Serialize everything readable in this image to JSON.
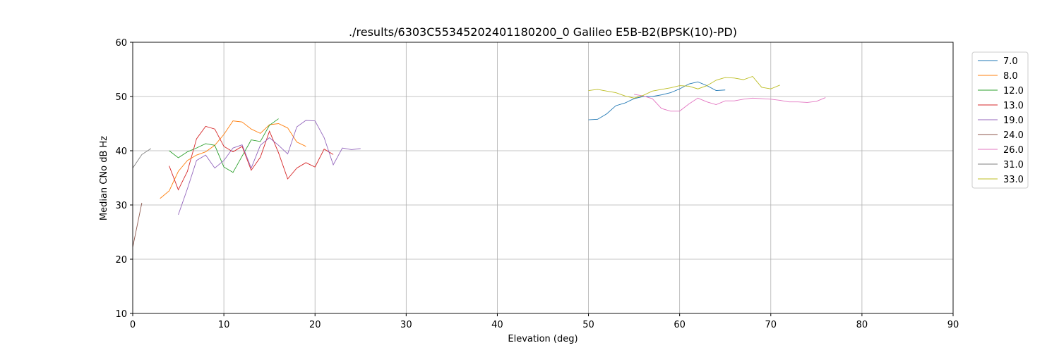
{
  "chart_data": {
    "type": "line",
    "title": "./results/6303C55345202401180200_0 Galileo E5B-B2(BPSK(10)-PD)",
    "xlabel": "Elevation (deg)",
    "ylabel": "Median CNo dB Hz",
    "xlim": [
      0,
      90
    ],
    "ylim": [
      10,
      60
    ],
    "xticks": [
      0,
      10,
      20,
      30,
      40,
      50,
      60,
      70,
      80,
      90
    ],
    "yticks": [
      10,
      20,
      30,
      40,
      50,
      60
    ],
    "grid": true,
    "legend": "right",
    "series": [
      {
        "name": "7.0",
        "color": "#1f77b4",
        "x": [
          50,
          51,
          52,
          53,
          54,
          55,
          56,
          57,
          58,
          59,
          60,
          61,
          62,
          63,
          64,
          65
        ],
        "values": [
          45.7,
          45.8,
          46.8,
          48.3,
          48.8,
          49.6,
          50.0,
          50.0,
          50.3,
          50.7,
          51.4,
          52.3,
          52.7,
          52.0,
          51.1,
          51.2
        ]
      },
      {
        "name": "8.0",
        "color": "#ff7f0e",
        "x": [
          3,
          4,
          5,
          6,
          7,
          8,
          9,
          10,
          11,
          12,
          13,
          14,
          15,
          16,
          17,
          18,
          19
        ],
        "values": [
          31.2,
          32.6,
          36.2,
          38.2,
          39.2,
          39.8,
          41.0,
          43.0,
          45.5,
          45.3,
          44.0,
          43.2,
          44.8,
          45.0,
          44.2,
          41.6,
          40.8
        ]
      },
      {
        "name": "12.0",
        "color": "#2ca02c",
        "x": [
          4,
          5,
          6,
          7,
          8,
          9,
          10,
          11,
          12,
          13,
          14,
          15,
          16
        ],
        "values": [
          40.0,
          38.7,
          39.8,
          40.5,
          41.3,
          41.0,
          37.0,
          36.0,
          39.0,
          42.0,
          41.7,
          44.7,
          45.9
        ]
      },
      {
        "name": "13.0",
        "color": "#d62728",
        "x": [
          4,
          5,
          6,
          7,
          8,
          9,
          10,
          11,
          12,
          13,
          14,
          15,
          16,
          17,
          18,
          19,
          20,
          21,
          22
        ],
        "values": [
          37.2,
          32.8,
          36.2,
          42.2,
          44.5,
          44.0,
          40.8,
          39.8,
          40.8,
          36.4,
          38.8,
          43.6,
          39.6,
          34.8,
          36.8,
          37.8,
          37.0,
          40.3,
          39.3
        ]
      },
      {
        "name": "19.0",
        "color": "#9467bd",
        "x": [
          5,
          6,
          7,
          8,
          9,
          10,
          11,
          12,
          13,
          14,
          15,
          16,
          17,
          18,
          19,
          20,
          21,
          22,
          23,
          24,
          25
        ],
        "values": [
          28.2,
          33.0,
          38.2,
          39.2,
          36.8,
          38.2,
          40.5,
          41.1,
          36.8,
          41.0,
          42.4,
          41.0,
          39.4,
          44.4,
          45.6,
          45.5,
          42.4,
          37.4,
          40.5,
          40.2,
          40.4
        ]
      },
      {
        "name": "24.0",
        "color": "#8c564b",
        "x": [
          0,
          1
        ],
        "values": [
          22.2,
          30.4
        ]
      },
      {
        "name": "26.0",
        "color": "#e377c2",
        "x": [
          55,
          56,
          57,
          58,
          59,
          60,
          61,
          62,
          63,
          64,
          65,
          66,
          67,
          68,
          69,
          70,
          71,
          72,
          73,
          74,
          75,
          76
        ],
        "values": [
          50.4,
          50.1,
          49.6,
          47.8,
          47.3,
          47.3,
          48.6,
          49.7,
          49.0,
          48.5,
          49.2,
          49.2,
          49.5,
          49.7,
          49.6,
          49.5,
          49.3,
          49.0,
          49.0,
          48.9,
          49.1,
          49.8
        ]
      },
      {
        "name": "31.0",
        "color": "#7f7f7f",
        "x": [
          0,
          1,
          2
        ],
        "values": [
          36.8,
          39.3,
          40.4
        ]
      },
      {
        "name": "33.0",
        "color": "#bcbd22",
        "x": [
          50,
          51,
          52,
          53,
          54,
          55,
          56,
          57,
          58,
          59,
          60,
          61,
          62,
          63,
          64,
          65,
          66,
          67,
          68,
          69,
          70,
          71
        ],
        "values": [
          51.1,
          51.3,
          51.0,
          50.7,
          50.1,
          49.7,
          50.2,
          51.0,
          51.3,
          51.6,
          52.0,
          51.9,
          51.4,
          52.0,
          53.0,
          53.5,
          53.4,
          53.1,
          53.7,
          51.7,
          51.4,
          52.1
        ]
      }
    ]
  }
}
